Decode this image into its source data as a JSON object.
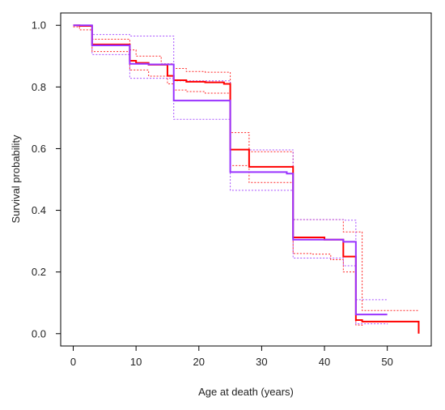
{
  "chart_data": {
    "type": "line",
    "title": "",
    "xlabel": "Age at death (years)",
    "ylabel": "Survival probability",
    "xlim": [
      -2,
      57
    ],
    "ylim": [
      -0.04,
      1.04
    ],
    "x_ticks": [
      0,
      10,
      20,
      30,
      40,
      50
    ],
    "y_ticks": [
      0.0,
      0.2,
      0.4,
      0.6,
      0.8,
      1.0
    ],
    "x_tick_labels": [
      "0",
      "10",
      "20",
      "30",
      "40",
      "50"
    ],
    "y_tick_labels": [
      "0.0",
      "0.2",
      "0.4",
      "0.6",
      "0.8",
      "1.0"
    ],
    "grid": false,
    "legend": "none",
    "series": [
      {
        "color": "#ff0000",
        "style": "solid",
        "x": [
          0,
          1,
          3,
          9,
          10,
          12,
          15,
          16,
          18,
          21,
          24,
          25,
          28,
          35,
          40,
          43,
          45,
          46,
          55
        ],
        "y": [
          1.0,
          0.998,
          0.938,
          0.885,
          0.878,
          0.872,
          0.836,
          0.822,
          0.817,
          0.815,
          0.81,
          0.597,
          0.541,
          0.312,
          0.305,
          0.25,
          0.044,
          0.039,
          0.0
        ]
      },
      {
        "color": "#9933ff",
        "style": "solid",
        "x": [
          0,
          3,
          9,
          12,
          16,
          25,
          34,
          35,
          43,
          45,
          50
        ],
        "y": [
          1.0,
          0.935,
          0.875,
          0.873,
          0.756,
          0.524,
          0.519,
          0.305,
          0.298,
          0.062,
          0.062
        ]
      },
      {
        "color": "#ff0000",
        "style": "dotted",
        "x": [
          0,
          1,
          3,
          9,
          10,
          14,
          16,
          18,
          21,
          25,
          28,
          35,
          43,
          46,
          55
        ],
        "y": [
          1.0,
          1.0,
          0.955,
          0.92,
          0.9,
          0.875,
          0.86,
          0.85,
          0.848,
          0.652,
          0.59,
          0.37,
          0.33,
          0.075,
          0.075
        ]
      },
      {
        "color": "#ff0000",
        "style": "dotted",
        "x": [
          0,
          1,
          3,
          9,
          12,
          15,
          16,
          18,
          21,
          25,
          28,
          35,
          38,
          41,
          43,
          45,
          46
        ],
        "y": [
          0.995,
          0.985,
          0.915,
          0.855,
          0.835,
          0.81,
          0.79,
          0.785,
          0.78,
          0.545,
          0.49,
          0.26,
          0.258,
          0.24,
          0.2,
          0.028,
          0.02
        ]
      },
      {
        "color": "#9933ff",
        "style": "dotted",
        "x": [
          0,
          3,
          9,
          16,
          25,
          35,
          43,
          45,
          50
        ],
        "y": [
          1.0,
          0.97,
          0.965,
          0.82,
          0.596,
          0.37,
          0.368,
          0.11,
          0.11
        ]
      },
      {
        "color": "#9933ff",
        "style": "dotted",
        "x": [
          0,
          3,
          9,
          16,
          25,
          35,
          43,
          45,
          50
        ],
        "y": [
          1.0,
          0.905,
          0.828,
          0.695,
          0.465,
          0.245,
          0.22,
          0.032,
          0.03
        ]
      }
    ]
  }
}
